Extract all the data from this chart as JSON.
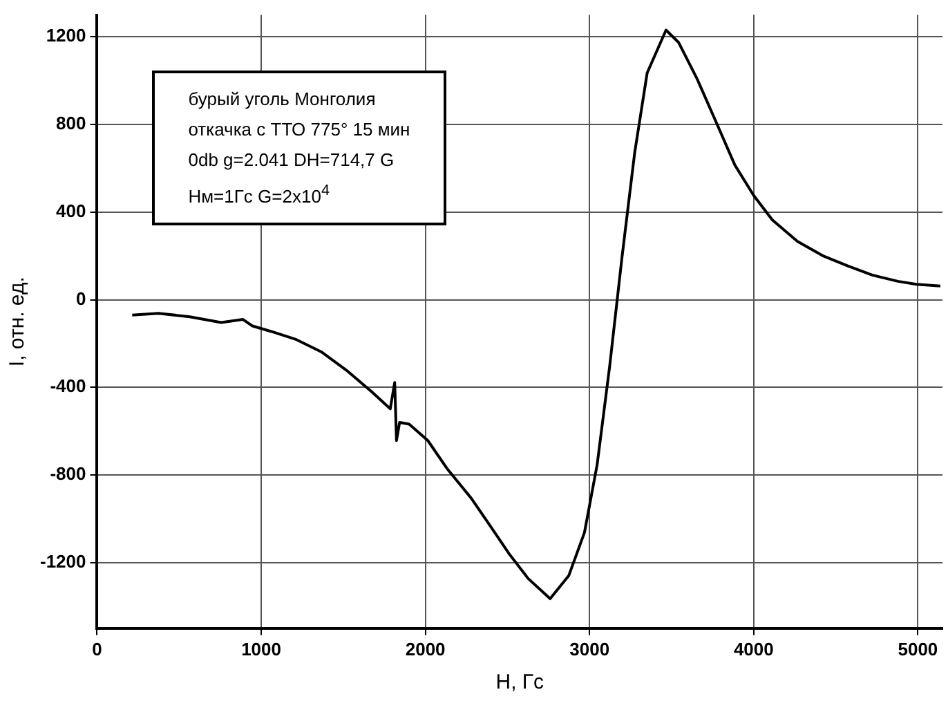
{
  "chart_data": {
    "type": "line",
    "xlabel": "H, Гс",
    "ylabel": "I, отн. ед.",
    "annotations": [
      "бурый уголь Монголия",
      "откачка с ТТО 775° 15 мин",
      "0db g=2.041  DH=714,7 G",
      "Hм=1Гс G=2x10$^{4}$"
    ],
    "x": [
      214,
      374,
      565,
      756,
      889,
      947,
      1061,
      1214,
      1366,
      1519,
      1672,
      1786,
      1813,
      1824,
      1843,
      1901,
      2015,
      2130,
      2282,
      2397,
      2511,
      2626,
      2760,
      2874,
      2969,
      3046,
      3122,
      3198,
      3275,
      3351,
      3466,
      3542,
      3656,
      3771,
      3885,
      4000,
      4114,
      4267,
      4420,
      4573,
      4725,
      4878,
      4992,
      5137
    ],
    "series": [
      {
        "color": "#000000",
        "values": [
          -70,
          -62,
          -78,
          -104,
          -90,
          -120,
          -145,
          -182,
          -238,
          -322,
          -420,
          -498,
          -378,
          -643,
          -560,
          -568,
          -643,
          -769,
          -909,
          -1035,
          -1161,
          -1273,
          -1365,
          -1259,
          -1063,
          -755,
          -308,
          196,
          671,
          1035,
          1231,
          1175,
          1007,
          811,
          615,
          476,
          364,
          266,
          201,
          154,
          112,
          84,
          70,
          62
        ]
      }
    ],
    "xlim": [
      0,
      5150
    ],
    "xticks": [
      0,
      1000,
      2000,
      3000,
      4000,
      5000
    ],
    "ylim": [
      -1500,
      1300
    ],
    "yticks": [
      -1200,
      -800,
      -400,
      0,
      400,
      800,
      1200
    ],
    "grid": true,
    "legend": false,
    "marker": "none",
    "line_style": "solid"
  }
}
